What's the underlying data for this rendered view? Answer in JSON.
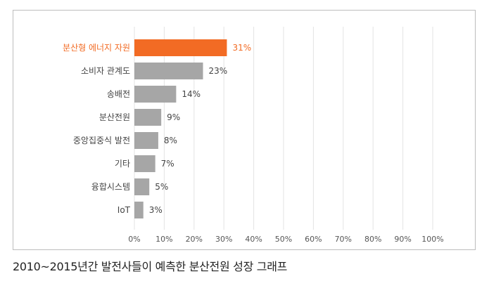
{
  "chart_data": {
    "type": "bar",
    "orientation": "horizontal",
    "categories": [
      "분산형 에너지 자원",
      "소비자 관계도",
      "송배전",
      "분산전원",
      "중앙집중식 발전",
      "기타",
      "융합시스템",
      "IoT"
    ],
    "values": [
      31,
      23,
      14,
      9,
      8,
      7,
      5,
      3
    ],
    "value_labels": [
      "31%",
      "23%",
      "14%",
      "9%",
      "8%",
      "7%",
      "5%",
      "3%"
    ],
    "highlight_index": 0,
    "xlim": [
      0,
      100
    ],
    "xticks": [
      0,
      10,
      20,
      30,
      40,
      50,
      60,
      70,
      80,
      90,
      100
    ],
    "xtick_labels": [
      "0%",
      "10%",
      "20%",
      "30%",
      "40%",
      "50%",
      "60%",
      "70%",
      "80%",
      "90%",
      "100%"
    ],
    "grid": "vertical",
    "title": "",
    "xlabel": "",
    "ylabel": ""
  },
  "caption": "2010~2015년간 발전사들이 예측한 분산전원 성장 그래프",
  "colors": {
    "highlight": "#f26b24",
    "bar": "#a6a6a6",
    "label": "#444444",
    "grid": "#e3e3e3"
  }
}
